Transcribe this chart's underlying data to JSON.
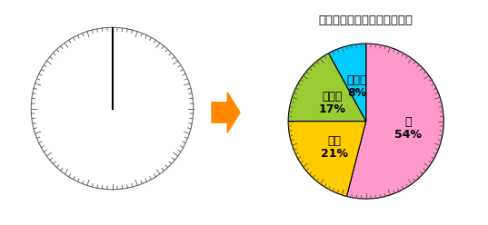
{
  "title": "（例）好きな動物（学級内）",
  "title_fontsize": 9.5,
  "slices": [
    {
      "label": "犬",
      "pct": "54%",
      "value": 54,
      "color": "#FF99CC"
    },
    {
      "label": "ネコ",
      "pct": "21%",
      "value": 21,
      "color": "#FFCC00"
    },
    {
      "label": "ウサギ",
      "pct": "17%",
      "value": 17,
      "color": "#99CC33"
    },
    {
      "label": "その他",
      "pct": "8%",
      "value": 8,
      "color": "#00CCFF"
    }
  ],
  "start_angle": 90,
  "bg_color": "#ffffff",
  "tick_color": "#555555",
  "n_ticks": 100,
  "arrow_color": "#FF8800",
  "label_fontsize": 9,
  "pct_fontsize": 9
}
